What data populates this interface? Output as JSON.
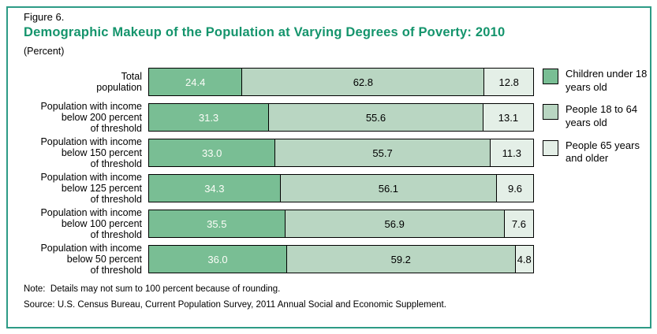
{
  "figure": {
    "label": "Figure 6.",
    "title": "Demographic Makeup of the Population at Varying Degrees of Poverty: 2010",
    "unit": "(Percent)",
    "note": "Note:  Details may not sum to 100 percent because of rounding.",
    "source": "Source: U.S. Census Bureau, Current Population Survey, 2011 Annual Social and Economic Supplement."
  },
  "colors": {
    "frame_border": "#2d9b86",
    "title_green": "#14946c",
    "series": [
      "#79be94",
      "#b9d6c2",
      "#e4efe7"
    ],
    "bar_border": "#000000",
    "value_text_on_dark": "#fcfdf8",
    "value_text_on_light": "#000000"
  },
  "legend": [
    {
      "label": "Children under 18 years old",
      "color": "#79be94"
    },
    {
      "label": "People 18 to 64 years old",
      "color": "#b9d6c2"
    },
    {
      "label": "People 65 years and older",
      "color": "#e4efe7"
    }
  ],
  "chart_data": {
    "type": "bar",
    "orientation": "horizontal",
    "stacked": true,
    "title": "Demographic Makeup of the Population at Varying Degrees of Poverty: 2010",
    "unit": "Percent",
    "xlim": [
      0,
      100
    ],
    "grid": false,
    "legend_position": "right",
    "categories": [
      "Total\npopulation",
      "Population with income\nbelow 200 percent\nof threshold",
      "Population with income\nbelow 150 percent\nof threshold",
      "Population with income\nbelow 125 percent\nof threshold",
      "Population with income\nbelow 100 percent\nof threshold",
      "Population with income\nbelow 50 percent\nof threshold"
    ],
    "series": [
      {
        "name": "Children under 18 years old",
        "values": [
          24.4,
          31.3,
          33.0,
          34.3,
          35.5,
          36.0
        ]
      },
      {
        "name": "People 18 to 64 years old",
        "values": [
          62.8,
          55.6,
          55.7,
          56.1,
          56.9,
          59.2
        ]
      },
      {
        "name": "People 65 years and older",
        "values": [
          12.8,
          13.1,
          11.3,
          9.6,
          7.6,
          4.8
        ]
      }
    ]
  }
}
